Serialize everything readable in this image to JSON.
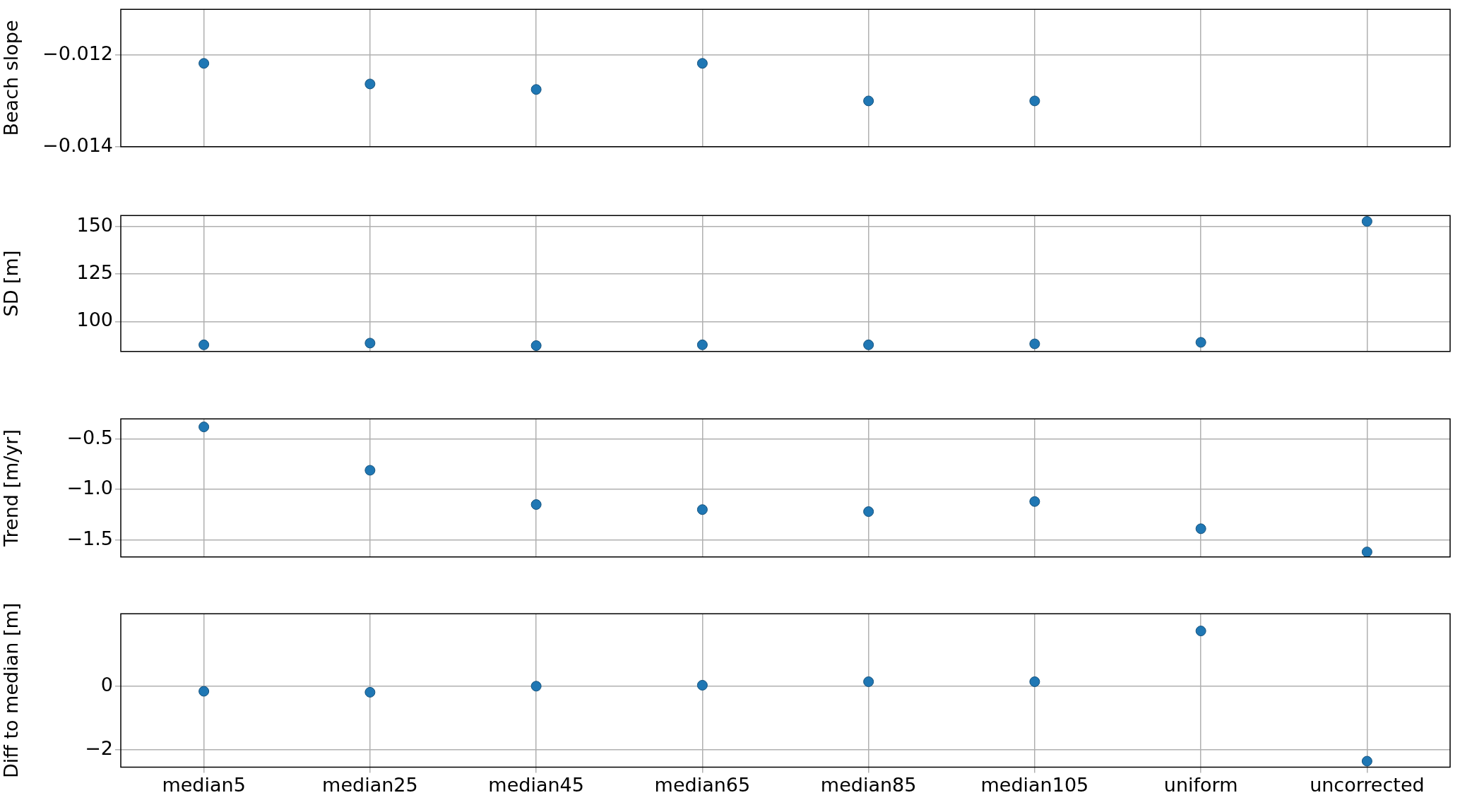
{
  "chart_data": [
    {
      "type": "scatter",
      "categories": [
        null,
        null,
        null,
        null,
        null,
        null,
        null,
        null
      ],
      "values": [
        -0.01218,
        -0.01263,
        -0.01275,
        -0.01218,
        -0.013,
        -0.013,
        null,
        null
      ],
      "color": "#1f77b4",
      "ylabel": "Beach slope",
      "ylim": [
        -0.014,
        -0.011
      ],
      "yticks": [
        {
          "value": -0.014,
          "label": "−0.014"
        },
        {
          "value": -0.012,
          "label": "−0.012"
        }
      ],
      "grid": true,
      "marker": "circle",
      "tick_labels": "y"
    },
    {
      "type": "scatter",
      "categories": [
        null,
        null,
        null,
        null,
        null,
        null,
        null,
        null
      ],
      "values": [
        87.8,
        88.7,
        87.4,
        87.8,
        87.8,
        88.3,
        89.1,
        152.6
      ],
      "color": "#1f77b4",
      "ylabel": "SD [m]",
      "ylim": [
        84.3,
        155.7
      ],
      "yticks": [
        100,
        125,
        150
      ],
      "grid": true,
      "marker": "circle",
      "tick_labels": "y"
    },
    {
      "type": "scatter",
      "categories": [
        null,
        null,
        null,
        null,
        null,
        null,
        null,
        null
      ],
      "values": [
        -0.38,
        -0.81,
        -1.15,
        -1.2,
        -1.22,
        -1.12,
        -1.39,
        -1.62
      ],
      "color": "#1f77b4",
      "ylabel": "Trend [m/yr]",
      "ylim": [
        -1.67,
        -0.3
      ],
      "yticks": [
        {
          "value": -1.5,
          "label": "−1.5"
        },
        {
          "value": -1.0,
          "label": "−1.0"
        },
        {
          "value": -0.5,
          "label": "−0.5"
        }
      ],
      "grid": true,
      "marker": "circle",
      "tick_labels": "y"
    },
    {
      "type": "scatter",
      "categories": [
        "median5",
        "median25",
        "median45",
        "median65",
        "median85",
        "median105",
        "uniform",
        "uncorrected"
      ],
      "values": [
        -0.16,
        -0.19,
        0,
        0.03,
        0.14,
        0.14,
        1.73,
        -2.35
      ],
      "color": "#1f77b4",
      "ylabel": "Diff to median [m]",
      "ylim": [
        -2.54,
        2.27
      ],
      "yticks": [
        {
          "value": -2,
          "label": "−2"
        },
        0
      ],
      "grid": true,
      "marker": "circle"
    }
  ]
}
